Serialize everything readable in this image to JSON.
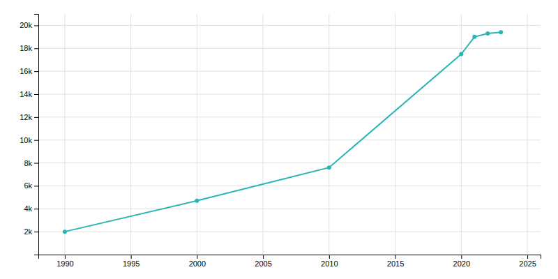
{
  "chart_data": {
    "type": "line",
    "x": [
      1990,
      2000,
      2010,
      2020,
      2021,
      2022,
      2023
    ],
    "values": [
      2000,
      4700,
      7600,
      17500,
      19000,
      19300,
      19400
    ],
    "color": "#2AB5B5",
    "marker": "circle",
    "xlim": [
      1988,
      2026
    ],
    "ylim": [
      0,
      21000
    ],
    "xticks": [
      1990,
      1995,
      2000,
      2005,
      2010,
      2015,
      2020,
      2025
    ],
    "yticks": [
      {
        "value": 2000,
        "label": "2k"
      },
      {
        "value": 4000,
        "label": "4k"
      },
      {
        "value": 6000,
        "label": "6k"
      },
      {
        "value": 8000,
        "label": "8k"
      },
      {
        "value": 10000,
        "label": "10k"
      },
      {
        "value": 12000,
        "label": "12k"
      },
      {
        "value": 14000,
        "label": "14k"
      },
      {
        "value": 16000,
        "label": "16k"
      },
      {
        "value": 18000,
        "label": "18k"
      },
      {
        "value": 20000,
        "label": "20k"
      }
    ],
    "grid": true
  }
}
